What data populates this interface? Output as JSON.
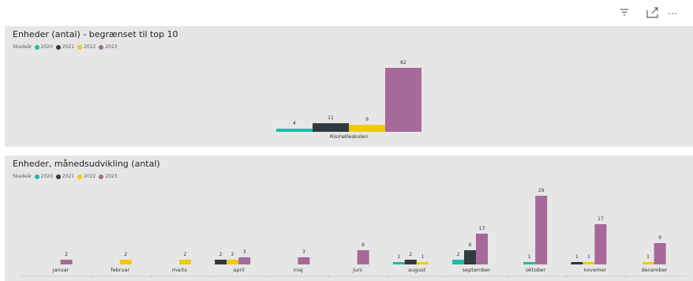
{
  "toolbar": {
    "filter_icon": "filter-icon",
    "focus_icon": "focus-mode-icon",
    "more_icon": "more-options-icon"
  },
  "colors": {
    "2020": "#1fb8aa",
    "2021": "#2f3a3f",
    "2022": "#f2c80f",
    "2023": "#a66999"
  },
  "legend": {
    "title": "Skadeår",
    "items": [
      "2020",
      "2021",
      "2022",
      "2023"
    ]
  },
  "chart_top": {
    "title": "Enheder (antal) - begrænset til top 10",
    "chart_data": {
      "type": "bar",
      "categories": [
        "Rismølleskolen"
      ],
      "series": [
        {
          "name": "2020",
          "values": [
            4
          ]
        },
        {
          "name": "2021",
          "values": [
            11
          ]
        },
        {
          "name": "2022",
          "values": [
            9
          ]
        },
        {
          "name": "2023",
          "values": [
            82
          ]
        }
      ],
      "ylim": [
        0,
        82
      ],
      "grid": false,
      "legend": "top-left"
    }
  },
  "chart_bottom": {
    "title": "Enheder, månedsudvikling (antal)",
    "chart_data": {
      "type": "bar",
      "categories": [
        "januar",
        "februar",
        "marts",
        "april",
        "maj",
        "juni",
        "august",
        "september",
        "oktober",
        "novemer",
        "december"
      ],
      "series": [
        {
          "name": "2020",
          "values": [
            null,
            null,
            null,
            null,
            null,
            null,
            1,
            2,
            1,
            null,
            null
          ]
        },
        {
          "name": "2021",
          "values": [
            null,
            null,
            null,
            2,
            null,
            null,
            2,
            6,
            null,
            1,
            null
          ]
        },
        {
          "name": "2022",
          "values": [
            null,
            2,
            2,
            2,
            null,
            null,
            1,
            null,
            null,
            1,
            1
          ]
        },
        {
          "name": "2023",
          "values": [
            2,
            null,
            null,
            3,
            3,
            6,
            null,
            13,
            29,
            17,
            9
          ]
        }
      ],
      "ylim": [
        0,
        29
      ],
      "grid": false,
      "legend": "top-left"
    }
  }
}
